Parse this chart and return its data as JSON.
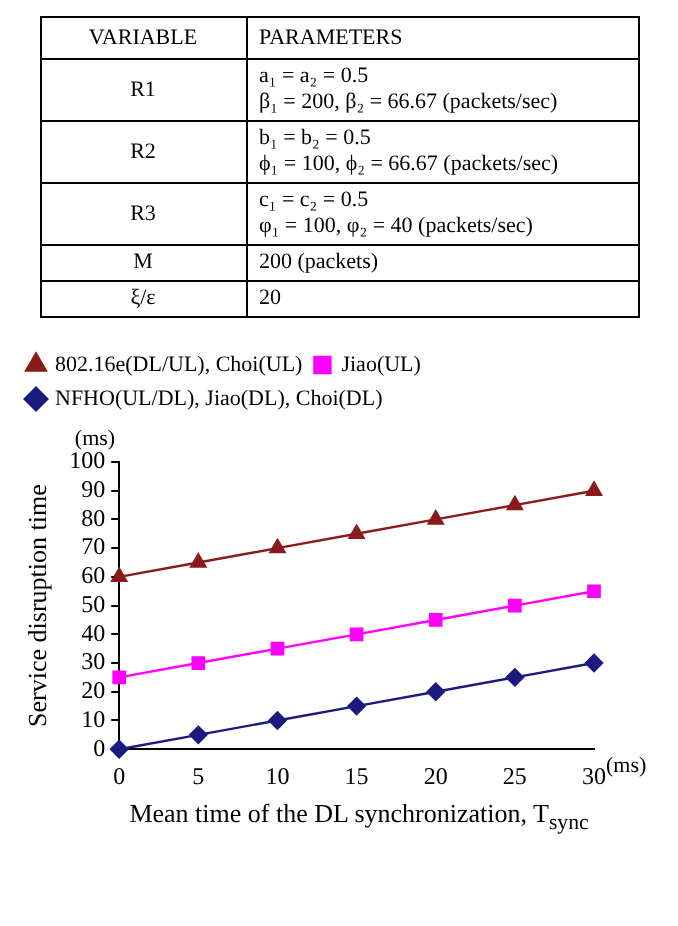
{
  "chart_data": [
    {
      "type": "other",
      "annotations": [
        "VARIABLE",
        "PARAMETERS",
        "R1",
        "a₁ = a₂ = 0.5\nβ₁ = 200, β₂ = 66.67 (packets/sec)",
        "R2",
        "b₁ = b₂ = 0.5\nϕ₁ = 100, ϕ₂ = 66.67 (packets/sec)",
        "R3",
        "c₁ = c₂ = 0.5\nφ₁ = 100, φ₂ = 40 (packets/sec)",
        "M",
        "200 (packets)",
        "ξ/ε",
        "20"
      ]
    },
    {
      "type": "line",
      "xlabel": "Mean time of the DL synchronization, T$_{sync}$",
      "ylabel": "Service disruption time",
      "annotations": [
        "(ms)",
        "(ms)"
      ],
      "x": [
        0,
        5,
        10,
        15,
        20,
        25,
        30
      ],
      "series": [
        {
          "name": "802.16e(DL/UL), Choi(UL)",
          "color": "#8b1a1a",
          "marker": "triangle",
          "values": [
            60,
            65,
            70,
            75,
            80,
            85,
            90
          ]
        },
        {
          "name": "Jiao(UL)",
          "color": "#ff00ff",
          "marker": "square",
          "values": [
            25,
            30,
            35,
            40,
            45,
            50,
            55
          ]
        },
        {
          "name": "NFHO(UL/DL), Jiao(DL), Choi(DL)",
          "color": "#1a1a80",
          "marker": "diamond",
          "values": [
            0,
            5,
            10,
            15,
            20,
            25,
            30
          ]
        }
      ],
      "xlim": [
        0,
        30
      ],
      "xticks": [
        0,
        5,
        10,
        15,
        20,
        25,
        30
      ],
      "ylim": [
        0,
        100
      ],
      "yticks": [
        0,
        10,
        20,
        30,
        40,
        50,
        60,
        70,
        80,
        90,
        100
      ],
      "legend": "top left",
      "grid": false,
      "line_style": "solid"
    }
  ]
}
